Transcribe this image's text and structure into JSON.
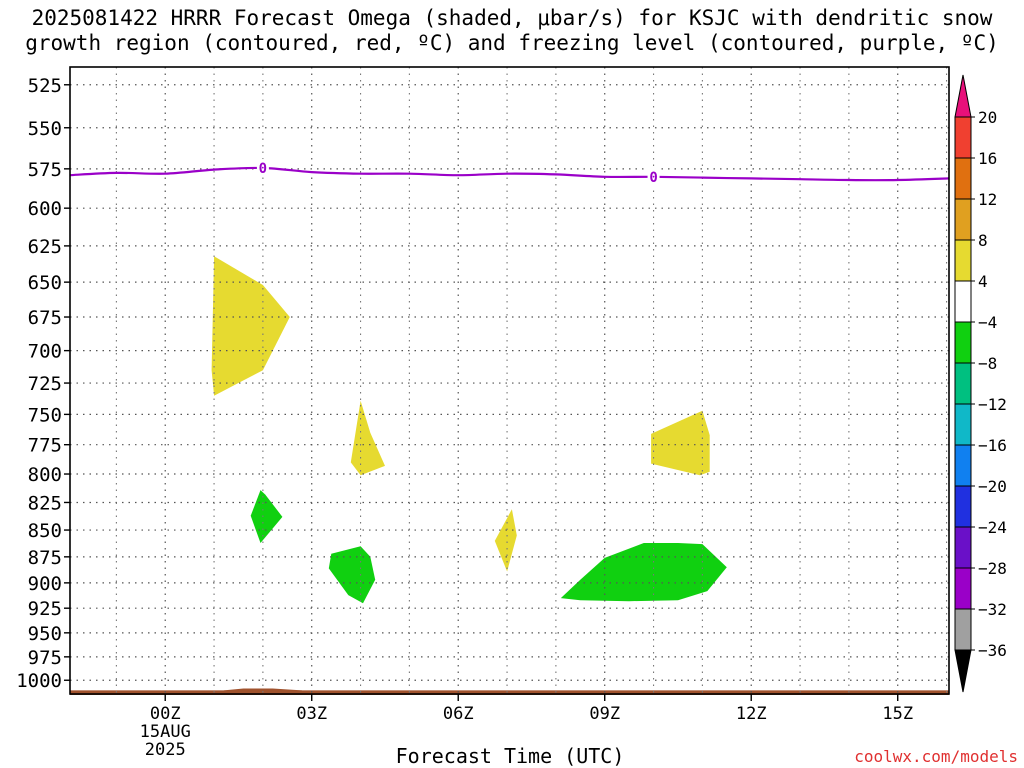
{
  "chart_data": {
    "type": "heatmap",
    "title_line1": "2025081422 HRRR Forecast Omega (shaded, μbar/s) for KSJC with dendritic snow",
    "title_line2": "growth region (contoured, red, ºC) and freezing level (contoured, purple, ºC)",
    "xlabel": "Forecast Time (UTC)",
    "credit": "coolwx.com/models",
    "x_unit": "hours since 2025-08-15 00Z",
    "xlim": [
      -1.95,
      16.05
    ],
    "x_ticks": [
      {
        "x": 0,
        "label": "00Z",
        "sub1": "15AUG",
        "sub2": "2025"
      },
      {
        "x": 3,
        "label": "03Z"
      },
      {
        "x": 6,
        "label": "06Z"
      },
      {
        "x": 9,
        "label": "09Z"
      },
      {
        "x": 12,
        "label": "12Z"
      },
      {
        "x": 15,
        "label": "15Z"
      }
    ],
    "y_unit": "mb",
    "y_scale": "log",
    "ylim": [
      515,
      1015
    ],
    "y_ticks": [
      525,
      550,
      575,
      600,
      625,
      650,
      675,
      700,
      725,
      750,
      775,
      800,
      825,
      850,
      875,
      900,
      925,
      950,
      975,
      1000
    ],
    "grid": true,
    "colorbar": {
      "colors": [
        "#000000",
        "#a0a0a0",
        "#9a00c8",
        "#6a10c8",
        "#2030e0",
        "#1080f0",
        "#10b8c8",
        "#00c080",
        "#10d010",
        "#ffffff",
        "#e6da30",
        "#e0a020",
        "#e07010",
        "#f04030",
        "#e8107a"
      ],
      "labels": [
        "-36",
        "-32",
        "-28",
        "-24",
        "-20",
        "-16",
        "-12",
        "-8",
        "-4",
        "4",
        "8",
        "12",
        "16",
        "20"
      ]
    },
    "freezing_level": {
      "label": "0",
      "color": "#9a00c8",
      "x": [
        -1.95,
        -1,
        0,
        1,
        2,
        3,
        4,
        5,
        6,
        7,
        8,
        9,
        10,
        11,
        12,
        13,
        14,
        15,
        16.05
      ],
      "p": [
        579,
        577.5,
        578,
        575.5,
        574.5,
        577,
        578,
        578,
        579,
        578,
        578.5,
        580,
        580,
        580.5,
        581,
        581.5,
        582,
        582,
        581
      ]
    },
    "omega_regions": [
      {
        "value_range": "4 to 8",
        "color": "#e6da30",
        "points": [
          [
            1,
            632
          ],
          [
            2.0,
            652
          ],
          [
            2.55,
            675
          ],
          [
            2.0,
            715
          ],
          [
            1.0,
            735
          ],
          [
            0.95,
            715
          ]
        ]
      },
      {
        "value_range": "4 to 8",
        "color": "#e6da30",
        "points": [
          [
            3.9,
            764
          ],
          [
            4.0,
            739
          ],
          [
            4.2,
            765
          ],
          [
            4.5,
            793
          ],
          [
            4.0,
            801
          ],
          [
            3.8,
            790
          ]
        ]
      },
      {
        "value_range": "4 to 8",
        "color": "#e6da30",
        "points": [
          [
            9.95,
            766
          ],
          [
            11.0,
            747
          ],
          [
            11.15,
            767
          ],
          [
            11.15,
            798
          ],
          [
            10.95,
            801
          ],
          [
            9.95,
            791
          ]
        ]
      },
      {
        "value_range": "4 to 8",
        "color": "#e6da30",
        "points": [
          [
            7.1,
            831
          ],
          [
            7.2,
            855
          ],
          [
            7.0,
            889
          ],
          [
            6.75,
            860
          ]
        ]
      },
      {
        "value_range": "-8 to -4",
        "color": "#10d010",
        "points": [
          [
            1.95,
            814
          ],
          [
            2.05,
            818
          ],
          [
            2.4,
            838
          ],
          [
            1.95,
            862
          ],
          [
            1.75,
            837
          ]
        ]
      },
      {
        "value_range": "-8 to -4",
        "color": "#10d010",
        "points": [
          [
            3.4,
            872
          ],
          [
            4.0,
            865
          ],
          [
            4.2,
            875
          ],
          [
            4.3,
            897
          ],
          [
            4.05,
            920
          ],
          [
            3.75,
            912
          ],
          [
            3.35,
            886
          ]
        ]
      },
      {
        "value_range": "-8 to -4",
        "color": "#10d010",
        "points": [
          [
            8.1,
            915
          ],
          [
            8.5,
            897
          ],
          [
            9.0,
            876
          ],
          [
            9.8,
            862
          ],
          [
            10.5,
            862
          ],
          [
            11.0,
            863
          ],
          [
            11.5,
            885
          ],
          [
            11.1,
            908
          ],
          [
            10.5,
            917
          ],
          [
            9.5,
            918
          ],
          [
            8.5,
            917
          ]
        ]
      }
    ],
    "surface": {
      "color": "#a0522d",
      "p": 1011,
      "bump": [
        [
          1.2,
          1011
        ],
        [
          1.6,
          1009
        ],
        [
          2.2,
          1009
        ],
        [
          2.8,
          1011
        ]
      ]
    }
  }
}
